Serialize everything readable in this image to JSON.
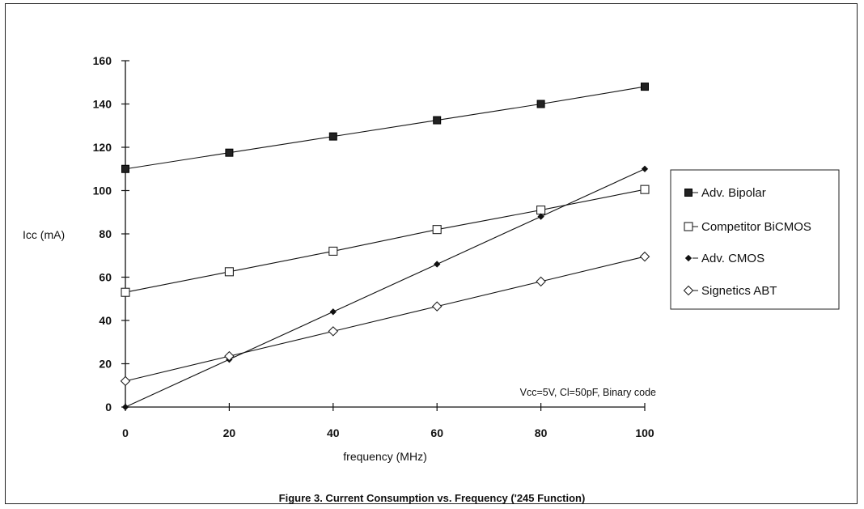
{
  "chart_data": {
    "type": "line",
    "caption": "Figure 3.  Current Consumption vs. Frequency ('245 Function)",
    "xlabel": "frequency (MHz)",
    "ylabel": "Icc (mA)",
    "annotation": "Vcc=5V, Cl=50pF, Binary code",
    "x": [
      0,
      20,
      40,
      60,
      80,
      100
    ],
    "xticks": [
      "0",
      "20",
      "40",
      "60",
      "80",
      "100"
    ],
    "yticks": [
      "0",
      "20",
      "40",
      "60",
      "80",
      "100",
      "120",
      "140",
      "160"
    ],
    "xlim": [
      0,
      100
    ],
    "ylim": [
      0,
      160
    ],
    "grid": false,
    "legend_position": "right",
    "series": [
      {
        "name": "Adv.  Bipolar",
        "marker": "filled-square",
        "values": [
          110,
          117.5,
          125,
          132.5,
          140,
          148
        ]
      },
      {
        "name": "Competitor BiCMOS",
        "marker": "open-square",
        "values": [
          53,
          62.5,
          72,
          82,
          91,
          100.5
        ]
      },
      {
        "name": "Adv. CMOS",
        "marker": "filled-diamond",
        "values": [
          0,
          22,
          44,
          66,
          88,
          110
        ]
      },
      {
        "name": "Signetics ABT",
        "marker": "open-diamond",
        "values": [
          12,
          23.5,
          35,
          46.5,
          58,
          69.5
        ]
      }
    ]
  }
}
